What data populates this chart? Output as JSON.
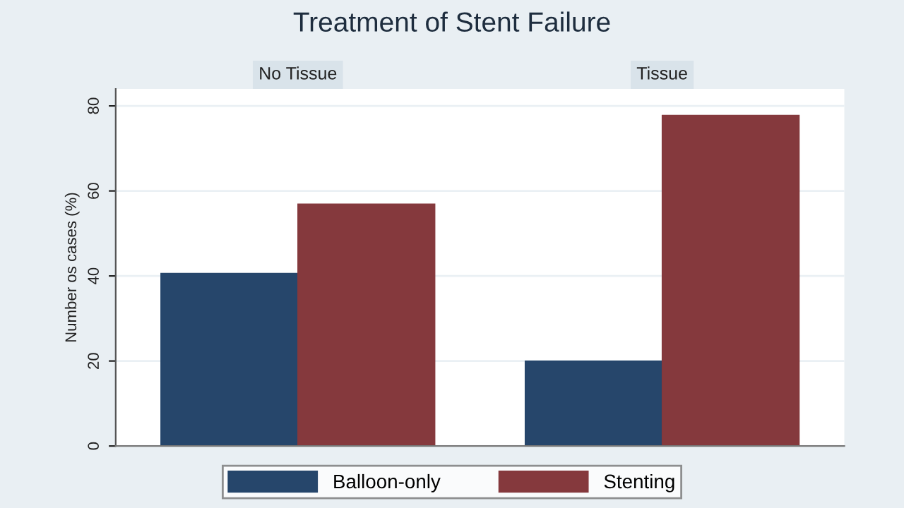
{
  "chart_data": {
    "type": "bar",
    "title": "Treatment of Stent Failure",
    "ylabel": "Number os cases (%)",
    "categories": [
      "No Tissue",
      "Tissue"
    ],
    "ylim": [
      0,
      84
    ],
    "yticks": [
      0,
      20,
      40,
      60,
      80
    ],
    "grid": "y",
    "legend": "bottom",
    "series": [
      {
        "name": "Balloon-only",
        "color": "#26466b",
        "values": [
          40.6,
          20.0
        ]
      },
      {
        "name": "Stenting",
        "color": "#85393d",
        "values": [
          56.9,
          77.8
        ]
      }
    ]
  }
}
